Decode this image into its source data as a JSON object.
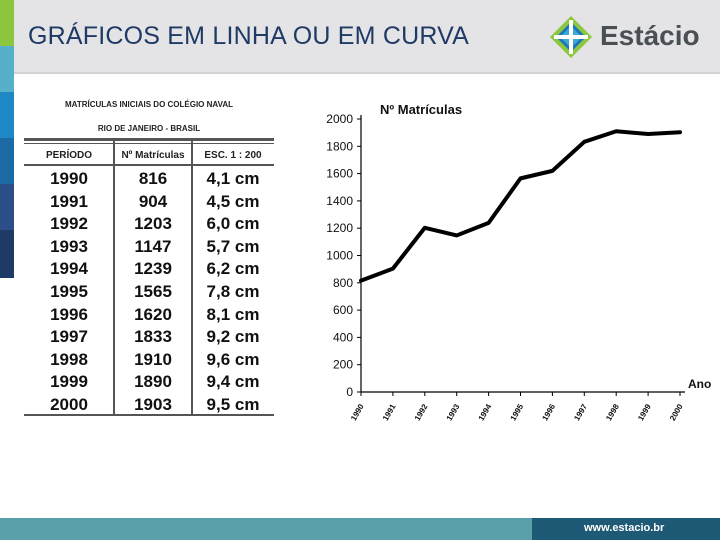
{
  "slide": {
    "title": "GRÁFICOS EM LINHA OU EM CURVA",
    "footer_url": "www.estacio.br",
    "logo_text": "Estácio",
    "logo_icon": "estacio-diamond-logo-icon",
    "colors": {
      "title": "#1f3a64",
      "header_band": "#e4e4e7",
      "footer": "#5aa0aa",
      "footer_dark": "#1e5a76",
      "logo_green": "#8dc63f",
      "logo_blue": "#1b75bb",
      "side_strip": [
        "#8cc63e",
        "#56b0c9",
        "#1e88c4",
        "#1c6aa4",
        "#2c4f8a",
        "#1e3a66"
      ]
    }
  },
  "table": {
    "title_line1": "MATRÍCULAS INICIAIS DO COLÉGIO NAVAL",
    "title_line2": "RIO DE JANEIRO - BRASIL",
    "headers": [
      "PERÍODO",
      "Nº Matrículas",
      "ESC. 1 : 200"
    ],
    "rows": [
      [
        "1990",
        "816",
        "4,1 cm"
      ],
      [
        "1991",
        "904",
        "4,5 cm"
      ],
      [
        "1992",
        "1203",
        "6,0 cm"
      ],
      [
        "1993",
        "1147",
        "5,7 cm"
      ],
      [
        "1994",
        "1239",
        "6,2 cm"
      ],
      [
        "1995",
        "1565",
        "7,8 cm"
      ],
      [
        "1996",
        "1620",
        "8,1 cm"
      ],
      [
        "1997",
        "1833",
        "9,2 cm"
      ],
      [
        "1998",
        "1910",
        "9,6 cm"
      ],
      [
        "1999",
        "1890",
        "9,4 cm"
      ],
      [
        "2000",
        "1903",
        "9,5 cm"
      ]
    ]
  },
  "chart_data": {
    "type": "line",
    "title": "Nº Matrículas",
    "xlabel": "Ano",
    "ylabel": "",
    "x": [
      "1990",
      "1991",
      "1992",
      "1993",
      "1994",
      "1995",
      "1996",
      "1997",
      "1998",
      "1999",
      "2000"
    ],
    "series": [
      {
        "values": [
          816,
          904,
          1203,
          1147,
          1239,
          1565,
          1620,
          1833,
          1910,
          1890,
          1903
        ]
      }
    ],
    "ylim": [
      0,
      2000
    ],
    "yticks": [
      0,
      200,
      400,
      600,
      800,
      1000,
      1200,
      1400,
      1600,
      1800,
      2000
    ],
    "grid": false,
    "line_color": "#000000"
  }
}
